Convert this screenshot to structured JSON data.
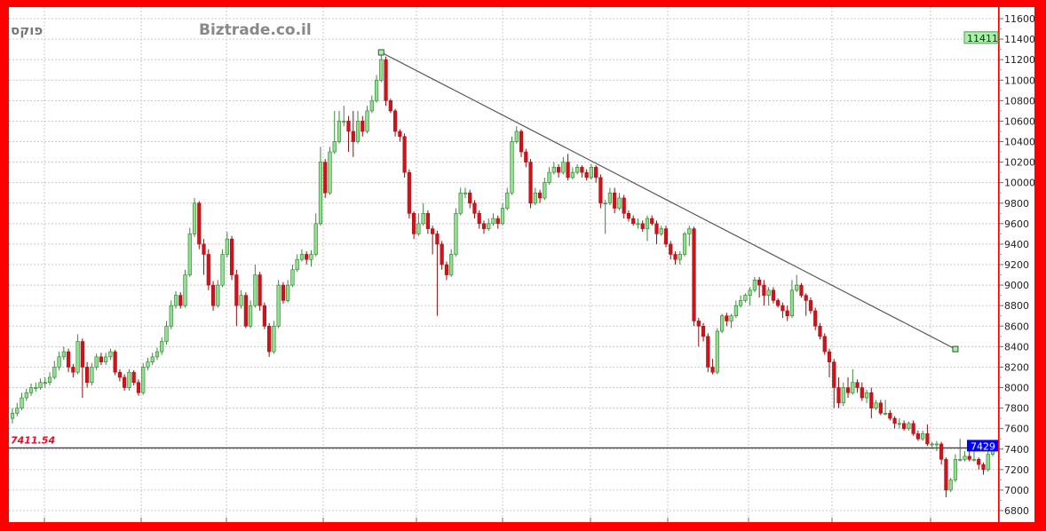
{
  "header": {
    "symbol_label": "פוקס",
    "watermark": "Biztrade.co.il"
  },
  "colors": {
    "frame": "#ff0000",
    "up_candle": "#8fe08f",
    "down_candle": "#d0131b",
    "trendline": "#555555",
    "last_price_badge": "#0000ff",
    "high_badge": "#a8f0a8",
    "reference_label": "#e0102a"
  },
  "chart_data": {
    "type": "candlestick",
    "title": "",
    "xlabel": "",
    "ylabel": "",
    "ylim": [
      6800,
      11600
    ],
    "y_ticks": [
      6800,
      7000,
      7200,
      7400,
      7600,
      7800,
      8000,
      8200,
      8400,
      8600,
      8800,
      9000,
      9200,
      9400,
      9600,
      9800,
      10000,
      10200,
      10400,
      10600,
      10800,
      11000,
      11200,
      11400,
      11600
    ],
    "grid": true,
    "candle_format": [
      "open",
      "high",
      "low",
      "close"
    ],
    "candles": [
      [
        7700,
        7800,
        7650,
        7750
      ],
      [
        7750,
        7850,
        7720,
        7800
      ],
      [
        7800,
        7950,
        7780,
        7900
      ],
      [
        7900,
        7990,
        7870,
        7950
      ],
      [
        7950,
        8040,
        7920,
        8000
      ],
      [
        8000,
        8050,
        7960,
        8000
      ],
      [
        8000,
        8090,
        7980,
        8050
      ],
      [
        8050,
        8100,
        8000,
        8050
      ],
      [
        8050,
        8150,
        8020,
        8100
      ],
      [
        8100,
        8260,
        8080,
        8200
      ],
      [
        8200,
        8350,
        8170,
        8300
      ],
      [
        8300,
        8400,
        8270,
        8350
      ],
      [
        8350,
        8380,
        8150,
        8200
      ],
      [
        8200,
        8230,
        8100,
        8150
      ],
      [
        8150,
        8520,
        8130,
        8450
      ],
      [
        8450,
        8480,
        7900,
        8200
      ],
      [
        8200,
        8250,
        8000,
        8050
      ],
      [
        8050,
        8240,
        8020,
        8200
      ],
      [
        8200,
        8330,
        8170,
        8300
      ],
      [
        8300,
        8340,
        8220,
        8250
      ],
      [
        8250,
        8340,
        8220,
        8300
      ],
      [
        8300,
        8380,
        8270,
        8350
      ],
      [
        8350,
        8370,
        8120,
        8150
      ],
      [
        8150,
        8180,
        8060,
        8100
      ],
      [
        8100,
        8130,
        7970,
        8000
      ],
      [
        8000,
        8180,
        7970,
        8150
      ],
      [
        8150,
        8170,
        8020,
        8050
      ],
      [
        8050,
        8080,
        7920,
        7950
      ],
      [
        7950,
        8240,
        7930,
        8200
      ],
      [
        8200,
        8290,
        8170,
        8250
      ],
      [
        8250,
        8340,
        8220,
        8300
      ],
      [
        8300,
        8390,
        8270,
        8350
      ],
      [
        8350,
        8490,
        8320,
        8450
      ],
      [
        8450,
        8650,
        8420,
        8600
      ],
      [
        8600,
        8850,
        8570,
        8800
      ],
      [
        8800,
        8940,
        8770,
        8900
      ],
      [
        8900,
        8930,
        8770,
        8800
      ],
      [
        8800,
        9150,
        8780,
        9100
      ],
      [
        9100,
        9560,
        9080,
        9500
      ],
      [
        9500,
        9850,
        9470,
        9800
      ],
      [
        9800,
        9820,
        9350,
        9400
      ],
      [
        9400,
        9450,
        9100,
        9300
      ],
      [
        9300,
        9350,
        8950,
        9000
      ],
      [
        9000,
        9040,
        8750,
        8800
      ],
      [
        8800,
        9050,
        8780,
        9000
      ],
      [
        9000,
        9350,
        8980,
        9300
      ],
      [
        9300,
        9520,
        9270,
        9450
      ],
      [
        9450,
        9480,
        9050,
        9100
      ],
      [
        9100,
        9150,
        8600,
        8800
      ],
      [
        8800,
        8950,
        8770,
        8900
      ],
      [
        8900,
        8930,
        8580,
        8600
      ],
      [
        8600,
        8850,
        8580,
        8800
      ],
      [
        8800,
        9200,
        8780,
        9100
      ],
      [
        9100,
        9130,
        8750,
        8800
      ],
      [
        8800,
        8830,
        8570,
        8600
      ],
      [
        8600,
        8630,
        8300,
        8350
      ],
      [
        8350,
        8650,
        8330,
        8600
      ],
      [
        8600,
        9050,
        8580,
        9000
      ],
      [
        9000,
        9030,
        8820,
        8850
      ],
      [
        8850,
        9050,
        8830,
        9000
      ],
      [
        9000,
        9200,
        8980,
        9150
      ],
      [
        9150,
        9300,
        9130,
        9250
      ],
      [
        9250,
        9350,
        9230,
        9300
      ],
      [
        9300,
        9330,
        9200,
        9250
      ],
      [
        9250,
        9340,
        9180,
        9300
      ],
      [
        9300,
        9700,
        9280,
        9600
      ],
      [
        9600,
        10350,
        9580,
        10200
      ],
      [
        10200,
        10230,
        9850,
        9900
      ],
      [
        9900,
        10350,
        9880,
        10300
      ],
      [
        10300,
        10700,
        10280,
        10400
      ],
      [
        10400,
        10700,
        10380,
        10600
      ],
      [
        10600,
        10750,
        10550,
        10600
      ],
      [
        10600,
        10650,
        10300,
        10500
      ],
      [
        10500,
        10700,
        10250,
        10400
      ],
      [
        10400,
        10700,
        10380,
        10600
      ],
      [
        10600,
        10650,
        10450,
        10500
      ],
      [
        10500,
        10750,
        10480,
        10700
      ],
      [
        10700,
        10850,
        10680,
        10800
      ],
      [
        10800,
        11050,
        10780,
        11000
      ],
      [
        11000,
        11250,
        10980,
        11200
      ],
      [
        11200,
        11230,
        10750,
        10800
      ],
      [
        10800,
        10820,
        10680,
        10700
      ],
      [
        10700,
        10720,
        10450,
        10500
      ],
      [
        10500,
        10520,
        10400,
        10450
      ],
      [
        10450,
        10480,
        10050,
        10100
      ],
      [
        10100,
        10130,
        9650,
        9700
      ],
      [
        9700,
        9720,
        9450,
        9500
      ],
      [
        9500,
        9700,
        9480,
        9600
      ],
      [
        9600,
        9800,
        9580,
        9700
      ],
      [
        9700,
        9730,
        9500,
        9550
      ],
      [
        9550,
        9580,
        9300,
        9500
      ],
      [
        9500,
        9530,
        8700,
        9400
      ],
      [
        9400,
        9430,
        9150,
        9200
      ],
      [
        9200,
        9230,
        9050,
        9100
      ],
      [
        9100,
        9350,
        9080,
        9300
      ],
      [
        9300,
        9750,
        9280,
        9700
      ],
      [
        9700,
        9950,
        9680,
        9900
      ],
      [
        9900,
        9950,
        9850,
        9900
      ],
      [
        9900,
        9930,
        9750,
        9800
      ],
      [
        9800,
        9830,
        9650,
        9700
      ],
      [
        9700,
        9730,
        9550,
        9600
      ],
      [
        9600,
        9630,
        9500,
        9550
      ],
      [
        9550,
        9650,
        9530,
        9600
      ],
      [
        9600,
        9700,
        9580,
        9650
      ],
      [
        9650,
        9680,
        9550,
        9600
      ],
      [
        9600,
        9800,
        9580,
        9750
      ],
      [
        9750,
        9950,
        9730,
        9900
      ],
      [
        9900,
        10450,
        9880,
        10400
      ],
      [
        10400,
        10550,
        10380,
        10500
      ],
      [
        10500,
        10520,
        10250,
        10300
      ],
      [
        10300,
        10330,
        10150,
        10200
      ],
      [
        10200,
        10230,
        9750,
        9800
      ],
      [
        9800,
        9950,
        9780,
        9900
      ],
      [
        9900,
        9930,
        9800,
        9850
      ],
      [
        9850,
        10050,
        9830,
        10000
      ],
      [
        10000,
        10150,
        9980,
        10100
      ],
      [
        10100,
        10200,
        10080,
        10150
      ],
      [
        10150,
        10180,
        10050,
        10100
      ],
      [
        10100,
        10250,
        10080,
        10200
      ],
      [
        10200,
        10280,
        10020,
        10050
      ],
      [
        10050,
        10150,
        10030,
        10100
      ],
      [
        10100,
        10180,
        10080,
        10150
      ],
      [
        10150,
        10170,
        10050,
        10100
      ],
      [
        10100,
        10130,
        10020,
        10050
      ],
      [
        10050,
        10180,
        10030,
        10150
      ],
      [
        10150,
        10170,
        10000,
        10050
      ],
      [
        10050,
        10080,
        9750,
        9800
      ],
      [
        9800,
        9830,
        9500,
        9800
      ],
      [
        9800,
        9950,
        9780,
        9900
      ],
      [
        9900,
        9950,
        9700,
        9750
      ],
      [
        9750,
        9900,
        9730,
        9850
      ],
      [
        9850,
        9880,
        9650,
        9700
      ],
      [
        9700,
        9730,
        9620,
        9650
      ],
      [
        9650,
        9680,
        9580,
        9600
      ],
      [
        9600,
        9650,
        9550,
        9600
      ],
      [
        9600,
        9630,
        9520,
        9550
      ],
      [
        9550,
        9680,
        9430,
        9650
      ],
      [
        9650,
        9680,
        9580,
        9600
      ],
      [
        9600,
        9630,
        9400,
        9500
      ],
      [
        9500,
        9580,
        9480,
        9550
      ],
      [
        9550,
        9580,
        9370,
        9400
      ],
      [
        9400,
        9430,
        9250,
        9300
      ],
      [
        9300,
        9330,
        9200,
        9250
      ],
      [
        9250,
        9330,
        9200,
        9300
      ],
      [
        9300,
        9520,
        9280,
        9500
      ],
      [
        9500,
        9580,
        9380,
        9550
      ],
      [
        9550,
        9570,
        8600,
        8650
      ],
      [
        8650,
        8680,
        8400,
        8600
      ],
      [
        8600,
        8630,
        8450,
        8500
      ],
      [
        8500,
        8530,
        8150,
        8200
      ],
      [
        8200,
        8280,
        8130,
        8150
      ],
      [
        8150,
        8580,
        8130,
        8550
      ],
      [
        8550,
        8720,
        8530,
        8700
      ],
      [
        8700,
        8730,
        8600,
        8650
      ],
      [
        8650,
        8720,
        8580,
        8700
      ],
      [
        8700,
        8850,
        8680,
        8800
      ],
      [
        8800,
        8900,
        8780,
        8850
      ],
      [
        8850,
        8920,
        8830,
        8900
      ],
      [
        8900,
        8980,
        8800,
        8950
      ],
      [
        8950,
        9080,
        8930,
        9050
      ],
      [
        9050,
        9080,
        8880,
        9000
      ],
      [
        9000,
        9050,
        8800,
        8900
      ],
      [
        8900,
        8980,
        8800,
        8950
      ],
      [
        8950,
        8980,
        8820,
        8850
      ],
      [
        8850,
        8870,
        8780,
        8800
      ],
      [
        8800,
        8830,
        8680,
        8750
      ],
      [
        8750,
        8800,
        8650,
        8700
      ],
      [
        8700,
        9050,
        8680,
        8950
      ],
      [
        8950,
        9100,
        8930,
        9000
      ],
      [
        9000,
        9020,
        8880,
        8900
      ],
      [
        8900,
        8920,
        8700,
        8850
      ],
      [
        8850,
        8880,
        8720,
        8750
      ],
      [
        8750,
        8780,
        8560,
        8600
      ],
      [
        8600,
        8630,
        8470,
        8500
      ],
      [
        8500,
        8530,
        8320,
        8350
      ],
      [
        8350,
        8380,
        8100,
        8250
      ],
      [
        8250,
        8280,
        7800,
        8000
      ],
      [
        8000,
        8100,
        7800,
        7850
      ],
      [
        7850,
        8050,
        7820,
        8000
      ],
      [
        8000,
        8100,
        7900,
        7950
      ],
      [
        7950,
        8180,
        7930,
        8050
      ],
      [
        8050,
        8080,
        7950,
        8000
      ],
      [
        8000,
        8050,
        7870,
        7900
      ],
      [
        7900,
        7980,
        7850,
        7950
      ],
      [
        7950,
        8000,
        7700,
        7800
      ],
      [
        7800,
        7880,
        7780,
        7850
      ],
      [
        7850,
        7880,
        7730,
        7750
      ],
      [
        7750,
        7880,
        7730,
        7750
      ],
      [
        7750,
        7780,
        7680,
        7700
      ],
      [
        7700,
        7720,
        7600,
        7650
      ],
      [
        7650,
        7700,
        7600,
        7650
      ],
      [
        7650,
        7680,
        7580,
        7600
      ],
      [
        7600,
        7670,
        7580,
        7650
      ],
      [
        7650,
        7680,
        7530,
        7550
      ],
      [
        7550,
        7580,
        7480,
        7500
      ],
      [
        7500,
        7580,
        7480,
        7550
      ],
      [
        7550,
        7640,
        7430,
        7450
      ],
      [
        7450,
        7470,
        7400,
        7450
      ],
      [
        7450,
        7480,
        7380,
        7450
      ],
      [
        7450,
        7470,
        7250,
        7300
      ],
      [
        7300,
        7320,
        6930,
        7000
      ],
      [
        7000,
        7120,
        6980,
        7100
      ],
      [
        7100,
        7350,
        7080,
        7300
      ],
      [
        7300,
        7500,
        7280,
        7300
      ],
      [
        7300,
        7380,
        7280,
        7330
      ],
      [
        7330,
        7400,
        7280,
        7300
      ],
      [
        7300,
        7380,
        7280,
        7300
      ],
      [
        7300,
        7320,
        7200,
        7250
      ],
      [
        7250,
        7270,
        7150,
        7200
      ],
      [
        7200,
        7380,
        7180,
        7350
      ],
      [
        7350,
        7480,
        7330,
        7429
      ]
    ],
    "trendline": {
      "start": {
        "index": 79,
        "price": 11271
      },
      "end": {
        "index": 202,
        "price": 8376
      }
    },
    "reference_line": {
      "value": 7411.54,
      "label": "7411.54"
    },
    "last_price": {
      "value": 7429,
      "label": "7429"
    },
    "high_marker": {
      "value": 11411,
      "label": "11411"
    }
  }
}
